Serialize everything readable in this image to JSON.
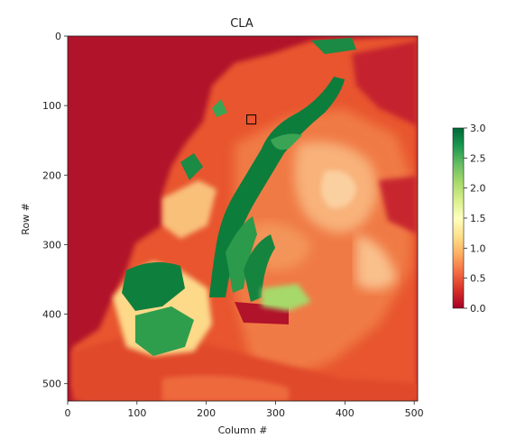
{
  "chart_data": {
    "type": "heatmap",
    "title": "CLA",
    "xlabel": "Column #",
    "ylabel": "Row #",
    "xlim": [
      0,
      505
    ],
    "ylim": [
      525,
      0
    ],
    "x_ticks": [
      0,
      100,
      200,
      300,
      400,
      500
    ],
    "y_ticks": [
      0,
      100,
      200,
      300,
      400,
      500
    ],
    "colormap": "RdYlGn",
    "colorbar": {
      "range": [
        0.0,
        3.0
      ],
      "ticks": [
        "0.0",
        "0.5",
        "1.0",
        "1.5",
        "2.0",
        "2.5",
        "3.0"
      ]
    },
    "marker": {
      "shape": "square",
      "row": 120,
      "column": 265
    },
    "colors": {
      "low": "#b50026",
      "mid": "#fcf5ad",
      "high": "#006837"
    }
  }
}
